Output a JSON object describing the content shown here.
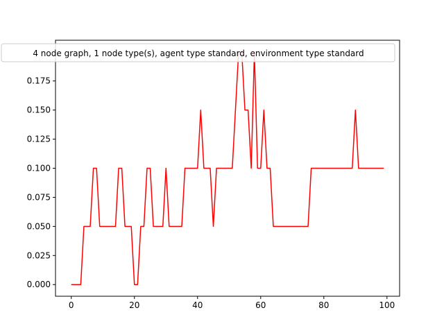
{
  "chart_data": {
    "type": "line",
    "title": "",
    "xlabel": "",
    "ylabel": "",
    "xlim": [
      -5,
      104
    ],
    "ylim": [
      -0.01,
      0.21
    ],
    "x_ticks": [
      0,
      20,
      40,
      60,
      80,
      100
    ],
    "x_tick_labels": [
      "0",
      "20",
      "40",
      "60",
      "80",
      "100"
    ],
    "y_ticks": [
      0.0,
      0.025,
      0.05,
      0.075,
      0.1,
      0.125,
      0.15,
      0.175
    ],
    "y_tick_labels": [
      "0.000",
      "0.025",
      "0.050",
      "0.075",
      "0.100",
      "0.125",
      "0.150",
      "0.175"
    ],
    "grid": false,
    "legend_position": "top-center",
    "series": [
      {
        "name": "4 node graph, 1 node type(s), agent type standard, environment type standard",
        "color": "#ff0000",
        "x": [
          0,
          1,
          2,
          3,
          4,
          5,
          6,
          7,
          8,
          9,
          10,
          11,
          12,
          13,
          14,
          15,
          16,
          17,
          18,
          19,
          20,
          21,
          22,
          23,
          24,
          25,
          26,
          27,
          28,
          29,
          30,
          31,
          32,
          33,
          34,
          35,
          36,
          37,
          38,
          39,
          40,
          41,
          42,
          43,
          44,
          45,
          46,
          47,
          48,
          49,
          50,
          51,
          52,
          53,
          54,
          55,
          56,
          57,
          58,
          59,
          60,
          61,
          62,
          63,
          64,
          65,
          66,
          67,
          68,
          69,
          70,
          71,
          72,
          73,
          74,
          75,
          76,
          77,
          78,
          79,
          80,
          81,
          82,
          83,
          84,
          85,
          86,
          87,
          88,
          89,
          90,
          91,
          92,
          93,
          94,
          95,
          96,
          97,
          98,
          99
        ],
        "y": [
          0,
          0,
          0,
          0,
          0.05,
          0.05,
          0.05,
          0.1,
          0.1,
          0.05,
          0.05,
          0.05,
          0.05,
          0.05,
          0.05,
          0.1,
          0.1,
          0.05,
          0.05,
          0.05,
          0,
          0,
          0.05,
          0.05,
          0.1,
          0.1,
          0.05,
          0.05,
          0.05,
          0.05,
          0.1,
          0.05,
          0.05,
          0.05,
          0.05,
          0.05,
          0.1,
          0.1,
          0.1,
          0.1,
          0.1,
          0.15,
          0.1,
          0.1,
          0.1,
          0.05,
          0.1,
          0.1,
          0.1,
          0.1,
          0.1,
          0.1,
          0.15,
          0.2,
          0.2,
          0.15,
          0.15,
          0.1,
          0.2,
          0.1,
          0.1,
          0.15,
          0.1,
          0.1,
          0.05,
          0.05,
          0.05,
          0.05,
          0.05,
          0.05,
          0.05,
          0.05,
          0.05,
          0.05,
          0.05,
          0.05,
          0.1,
          0.1,
          0.1,
          0.1,
          0.1,
          0.1,
          0.1,
          0.1,
          0.1,
          0.1,
          0.1,
          0.1,
          0.1,
          0.1,
          0.15,
          0.1,
          0.1,
          0.1,
          0.1,
          0.1,
          0.1,
          0.1,
          0.1,
          0.1
        ]
      }
    ]
  }
}
